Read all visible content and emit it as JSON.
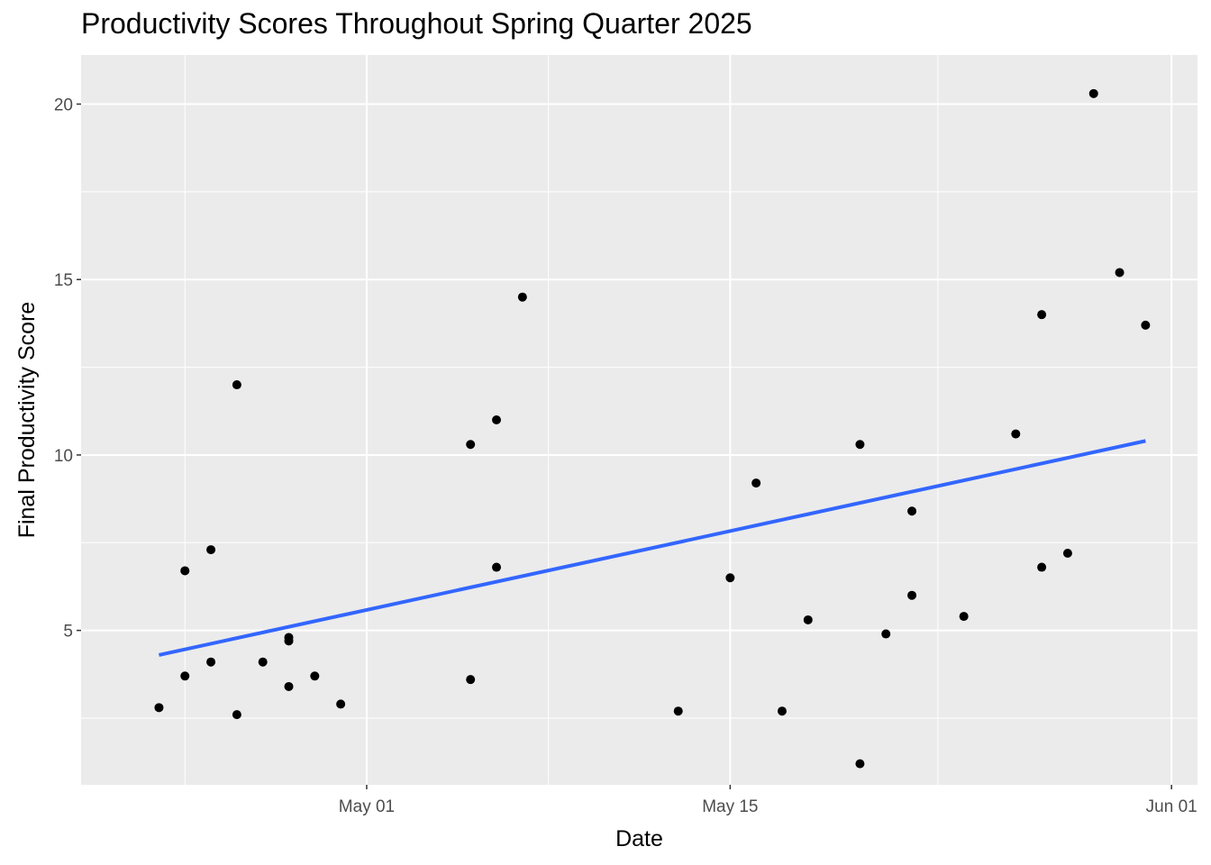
{
  "chart_data": {
    "type": "scatter",
    "title": "Productivity Scores Throughout Spring Quarter 2025",
    "xlabel": "Date",
    "ylabel": "Final Productivity Score",
    "x_type": "date",
    "xlim": [
      "2025-04-20",
      "2025-06-02"
    ],
    "ylim": [
      0.6,
      21.4
    ],
    "x_ticks": [
      {
        "value": "2025-05-01",
        "label": "May 01"
      },
      {
        "value": "2025-05-15",
        "label": "May 15"
      },
      {
        "value": "2025-06-01",
        "label": "Jun 01"
      }
    ],
    "x_minor_ticks": [
      "2025-04-24",
      "2025-05-08",
      "2025-05-23"
    ],
    "y_ticks": [
      5,
      10,
      15,
      20
    ],
    "y_minor_ticks": [
      2.5,
      7.5,
      12.5,
      17.5
    ],
    "grid": true,
    "legend": "none",
    "colors": {
      "panel_background": "#ebebeb",
      "grid": "#ffffff",
      "points": "#000000",
      "trend_line": "#3366ff"
    },
    "series": [
      {
        "points": [
          {
            "x": "2025-04-23",
            "y": 2.8
          },
          {
            "x": "2025-04-24",
            "y": 6.7
          },
          {
            "x": "2025-04-24",
            "y": 3.7
          },
          {
            "x": "2025-04-25",
            "y": 7.3
          },
          {
            "x": "2025-04-25",
            "y": 4.1
          },
          {
            "x": "2025-04-26",
            "y": 12.0
          },
          {
            "x": "2025-04-26",
            "y": 2.6
          },
          {
            "x": "2025-04-27",
            "y": 4.1
          },
          {
            "x": "2025-04-28",
            "y": 4.8
          },
          {
            "x": "2025-04-28",
            "y": 4.7
          },
          {
            "x": "2025-04-28",
            "y": 3.4
          },
          {
            "x": "2025-04-29",
            "y": 3.7
          },
          {
            "x": "2025-04-30",
            "y": 2.9
          },
          {
            "x": "2025-05-05",
            "y": 10.3
          },
          {
            "x": "2025-05-05",
            "y": 3.6
          },
          {
            "x": "2025-05-06",
            "y": 11.0
          },
          {
            "x": "2025-05-06",
            "y": 6.8
          },
          {
            "x": "2025-05-07",
            "y": 14.5
          },
          {
            "x": "2025-05-13",
            "y": 2.7
          },
          {
            "x": "2025-05-15",
            "y": 6.5
          },
          {
            "x": "2025-05-16",
            "y": 9.2
          },
          {
            "x": "2025-05-17",
            "y": 2.7
          },
          {
            "x": "2025-05-18",
            "y": 5.3
          },
          {
            "x": "2025-05-20",
            "y": 10.3
          },
          {
            "x": "2025-05-20",
            "y": 1.2
          },
          {
            "x": "2025-05-21",
            "y": 4.9
          },
          {
            "x": "2025-05-22",
            "y": 8.4
          },
          {
            "x": "2025-05-22",
            "y": 6.0
          },
          {
            "x": "2025-05-24",
            "y": 5.4
          },
          {
            "x": "2025-05-26",
            "y": 10.6
          },
          {
            "x": "2025-05-27",
            "y": 14.0
          },
          {
            "x": "2025-05-27",
            "y": 6.8
          },
          {
            "x": "2025-05-28",
            "y": 7.2
          },
          {
            "x": "2025-05-29",
            "y": 20.3
          },
          {
            "x": "2025-05-30",
            "y": 15.2
          },
          {
            "x": "2025-05-31",
            "y": 13.7
          }
        ]
      }
    ],
    "trend_line": {
      "method": "linear",
      "points": [
        {
          "x": "2025-04-23",
          "y": 4.3
        },
        {
          "x": "2025-05-31",
          "y": 10.4
        }
      ]
    }
  }
}
